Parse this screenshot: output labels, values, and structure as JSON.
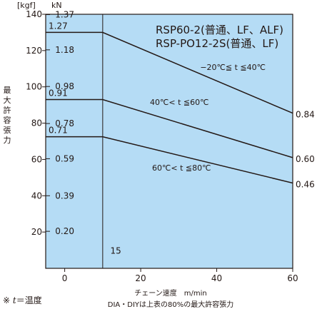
{
  "units": {
    "left": "[kgf]",
    "right": "kN"
  },
  "ylabel": [
    "最",
    "大",
    "許",
    "容",
    "張",
    "力"
  ],
  "xlabel": "チェーン速度　m/min",
  "footnote_left_mark": "※ ",
  "footnote_left_var": "t",
  "footnote_left_rest": "＝温度",
  "footnote_center": "DIA・DIYは上表の80%の最大許容張力",
  "colors": {
    "plot_bg": "#b5dcf5",
    "line": "#231815",
    "grid": "#231815"
  },
  "chart_data": {
    "type": "line",
    "title": [
      "RSP60-2(普通、LF、ALF)",
      "RSP-PO12-2S(普通、LF)"
    ],
    "x_ticks": [
      0,
      20,
      40,
      60
    ],
    "xlim": [
      -5,
      60
    ],
    "ylim": [
      0,
      140
    ],
    "y_ticks_kgf": [
      20,
      40,
      60,
      80,
      100,
      120,
      140
    ],
    "y_ticks_kn_positions": [
      20.4,
      40.0,
      60.4,
      79.8,
      100.2,
      120.4,
      139.8
    ],
    "y_ticks_kn_labels": [
      "0.20",
      "0.39",
      "0.59",
      "0.78",
      "0.98",
      "1.18",
      "1.37"
    ],
    "vline_x": 10,
    "series": [
      {
        "name": "−20℃≦ t ≦40℃",
        "x": [
          -5,
          10,
          60
        ],
        "y": [
          130,
          130,
          85.5
        ],
        "start_label": "1.27",
        "end_label": "0.84"
      },
      {
        "name": "40℃< t ≦60℃",
        "x": [
          -5,
          10,
          60
        ],
        "y": [
          93,
          93,
          61
        ],
        "start_label": "0.91",
        "end_label": "0.60"
      },
      {
        "name": "60℃< t ≦80℃",
        "x": [
          -5,
          10,
          60
        ],
        "y": [
          72.5,
          72.5,
          47
        ],
        "start_label": "0.71",
        "end_label": "0.46"
      }
    ],
    "annotations": [
      {
        "text": "15",
        "x": 12,
        "y": 8
      }
    ]
  }
}
